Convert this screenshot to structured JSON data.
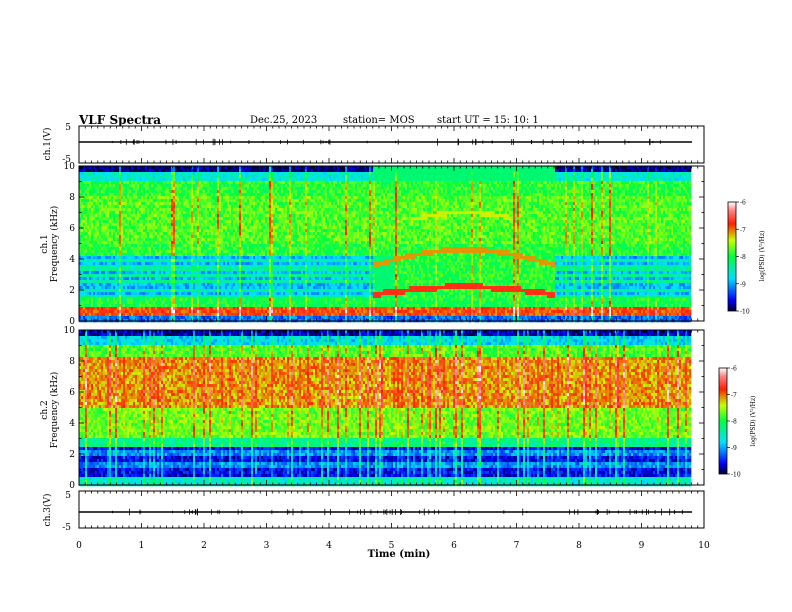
{
  "header": {
    "title": "VLF Spectra",
    "date": "Dec.25, 2023",
    "station": "station= MOS",
    "start_ut": "start  UT =   15: 10: 1"
  },
  "chart_data": [
    {
      "type": "line",
      "name": "ch1-waveform",
      "ylabel": "ch.1(V)",
      "ylim": [
        -5,
        5
      ],
      "yticks": [
        "5",
        "-5"
      ],
      "baseline": 0
    },
    {
      "type": "heatmap",
      "name": "ch1-spectrogram",
      "ylabel": "ch.1\nFrequency (kHz)",
      "ylim": [
        0,
        10
      ],
      "yticks": [
        "0",
        "2",
        "4",
        "6",
        "8",
        "10"
      ],
      "xlim": [
        0,
        10
      ],
      "colorbar": {
        "label": "log(PSD) (V²/Hz)",
        "range": [
          -10,
          -6
        ],
        "ticks": [
          "-6",
          "-7",
          "-8",
          "-9",
          "-10"
        ]
      }
    },
    {
      "type": "heatmap",
      "name": "ch2-spectrogram",
      "ylabel": "ch.2\nFrequency (kHz)",
      "ylim": [
        0,
        10
      ],
      "yticks": [
        "0",
        "2",
        "4",
        "6",
        "8",
        "10"
      ],
      "xlim": [
        0,
        10
      ],
      "colorbar": {
        "label": "log(PSD) (V²/Hz)",
        "range": [
          -10,
          -6
        ],
        "ticks": [
          "-6",
          "-7",
          "-8",
          "-9",
          "-10"
        ]
      }
    },
    {
      "type": "line",
      "name": "ch3-waveform",
      "ylabel": "ch.3(V)",
      "ylim": [
        -5,
        5
      ],
      "yticks": [
        "5",
        "-5"
      ],
      "baseline": 0
    }
  ],
  "xaxis": {
    "label": "Time (min)",
    "range": [
      0,
      10
    ],
    "ticks": [
      "0",
      "1",
      "2",
      "3",
      "4",
      "5",
      "6",
      "7",
      "8",
      "9",
      "10"
    ]
  }
}
